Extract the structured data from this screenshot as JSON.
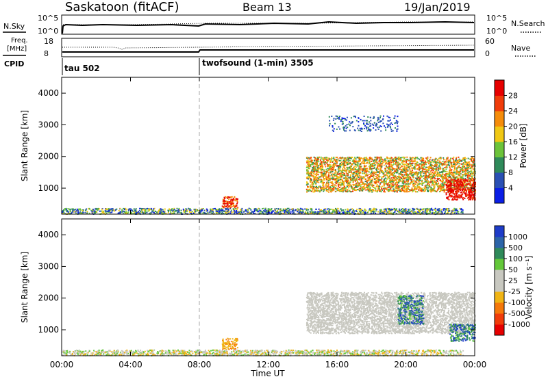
{
  "header": {
    "station": "Saskatoon (fitACF)",
    "beam": "Beam 13",
    "date": "19/Jan/2019"
  },
  "noise_panel": {
    "left_label": "N.Sky",
    "right_label": "N.Search",
    "left_ticks": [
      "10^5",
      "10^0"
    ],
    "right_ticks": [
      "10^5",
      "10^0"
    ]
  },
  "freq_panel": {
    "left_label_line1": "Freq.",
    "left_label_line2": "[MHz]",
    "right_label": "Nave",
    "left_ticks": [
      "18",
      "8"
    ],
    "right_ticks": [
      "60",
      "0"
    ]
  },
  "cpid_panel": {
    "label": "CPID",
    "entries": [
      {
        "start_hour": 0.05,
        "text": "tau 502"
      },
      {
        "start_hour": 8.0,
        "text": "twofsound (1-min) 3505"
      }
    ]
  },
  "power_panel": {
    "ylabel": "Slant Range [km]",
    "yticks": [
      "1000",
      "2000",
      "3000",
      "4000"
    ],
    "colorbar_label": "Power [dB]",
    "colorbar_ticks": [
      "4",
      "8",
      "12",
      "16",
      "20",
      "24",
      "28"
    ],
    "colors": [
      "#0a1ee6",
      "#2a50b4",
      "#2f8a5a",
      "#6cc33a",
      "#f0c814",
      "#f58c0a",
      "#f03c0a",
      "#e60000"
    ]
  },
  "velocity_panel": {
    "ylabel": "Slant Range [km]",
    "yticks": [
      "1000",
      "2000",
      "3000",
      "4000"
    ],
    "colorbar_label": "Velocity [m s⁻¹]",
    "colorbar_ticks": [
      "1000",
      "500",
      "100",
      "50",
      "25",
      "-25",
      "-100",
      "-500",
      "-1000"
    ],
    "colors": [
      "#1e3cc8",
      "#2c64a8",
      "#2f8a5a",
      "#64c83a",
      "#c8c8c0",
      "#c8c8c0",
      "#f0b414",
      "#f5780a",
      "#f03c0a",
      "#e60000"
    ]
  },
  "x_axis": {
    "label": "Time UT",
    "ticks": [
      "00:00",
      "04:00",
      "08:00",
      "12:00",
      "16:00",
      "20:00",
      "00:00"
    ]
  },
  "chart_data": {
    "type": "heatmap",
    "x_range_hours": [
      0,
      24
    ],
    "y_range_km": [
      180,
      4500
    ],
    "mode_change_hour": 8.0,
    "power_regions": [
      {
        "t0": 0.0,
        "t1": 23.3,
        "r0": 200,
        "r1": 380,
        "level": "low-mid",
        "description": "ground scatter band"
      },
      {
        "t0": 9.3,
        "t1": 10.2,
        "r0": 400,
        "r1": 750,
        "level": "high"
      },
      {
        "t0": 14.2,
        "t1": 24.0,
        "r0": 900,
        "r1": 2000,
        "level": "mid-high"
      },
      {
        "t0": 22.3,
        "t1": 24.0,
        "r0": 650,
        "r1": 1300,
        "level": "very-high"
      },
      {
        "t0": 15.5,
        "t1": 19.5,
        "r0": 2800,
        "r1": 3300,
        "level": "low"
      }
    ],
    "velocity_regions": [
      {
        "t0": 14.2,
        "t1": 24.0,
        "r0": 900,
        "r1": 2200,
        "value_range": [
          -25,
          25
        ]
      },
      {
        "t0": 9.3,
        "t1": 10.2,
        "r0": 400,
        "r1": 750,
        "value_range": [
          -500,
          -100
        ]
      },
      {
        "t0": 19.5,
        "t1": 21.0,
        "r0": 1200,
        "r1": 2100,
        "value_range": [
          100,
          1000
        ]
      },
      {
        "t0": 22.5,
        "t1": 24.0,
        "r0": 650,
        "r1": 1200,
        "value_range": [
          50,
          500
        ]
      }
    ]
  }
}
